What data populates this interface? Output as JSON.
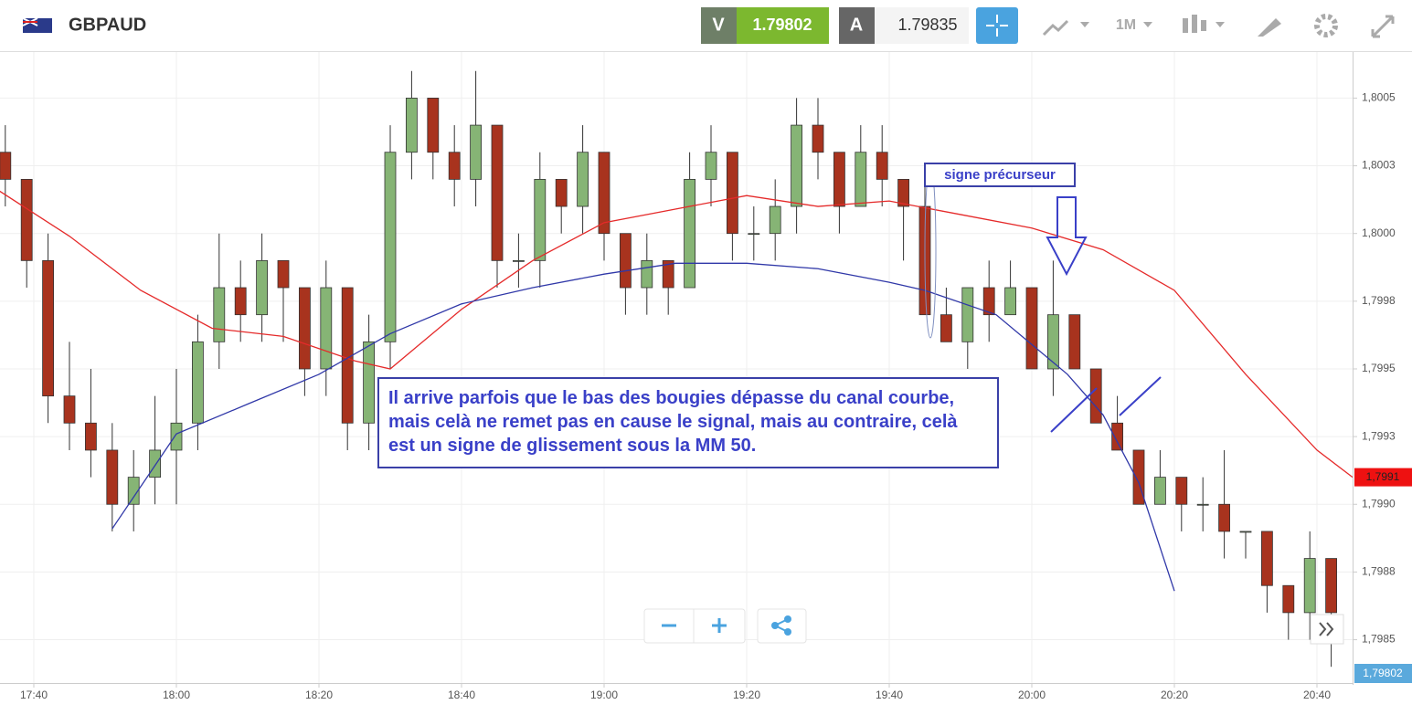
{
  "header": {
    "symbol": "GBPAUD",
    "sell_label": "V",
    "sell_price": "1.79802",
    "buy_label": "A",
    "buy_price": "1.79835",
    "timeframe": "1M"
  },
  "chart_data": {
    "type": "candlestick",
    "x": [
      "17:36",
      "17:39",
      "17:42",
      "17:45",
      "17:48",
      "17:51",
      "17:54",
      "17:57",
      "18:00",
      "18:03",
      "18:06",
      "18:09",
      "18:12",
      "18:15",
      "18:18",
      "18:21",
      "18:24",
      "18:27",
      "18:30",
      "18:33",
      "18:36",
      "18:39",
      "18:42",
      "18:45",
      "18:48",
      "18:51",
      "18:54",
      "18:57",
      "19:00",
      "19:03",
      "19:06",
      "19:09",
      "19:12",
      "19:15",
      "19:18",
      "19:21",
      "19:24",
      "19:27",
      "19:30",
      "19:33",
      "19:36",
      "19:39",
      "19:42",
      "19:45",
      "19:48",
      "19:51",
      "19:54",
      "19:57",
      "20:00",
      "20:03",
      "20:06",
      "20:09",
      "20:12",
      "20:15",
      "20:18",
      "20:21",
      "20:24",
      "20:27",
      "20:30",
      "20:33",
      "20:36",
      "20:39",
      "20:42"
    ],
    "open": [
      1.8003,
      1.8002,
      1.7999,
      1.7994,
      1.7993,
      1.7992,
      1.799,
      1.7991,
      1.7992,
      1.7993,
      1.7996,
      1.7998,
      1.7997,
      1.7999,
      1.7998,
      1.7995,
      1.7998,
      1.7993,
      1.7996,
      1.8003,
      1.8005,
      1.8003,
      1.8002,
      1.8004,
      1.7999,
      1.7999,
      1.8002,
      1.8001,
      1.8003,
      1.8,
      1.7998,
      1.7999,
      1.7998,
      1.8002,
      1.8003,
      1.8,
      1.8,
      1.8001,
      1.8004,
      1.8003,
      1.8001,
      1.8003,
      1.8002,
      1.8001,
      1.7997,
      1.7996,
      1.7998,
      1.7997,
      1.7998,
      1.7995,
      1.7997,
      1.7995,
      1.7993,
      1.7992,
      1.799,
      1.7991,
      1.799,
      1.799,
      1.7989,
      1.7989,
      1.7987,
      1.7986,
      1.7988
    ],
    "high": [
      1.8004,
      1.8002,
      1.8,
      1.7996,
      1.7995,
      1.7993,
      1.7992,
      1.7994,
      1.7995,
      1.7997,
      1.8,
      1.7999,
      1.8,
      1.7999,
      1.7998,
      1.7999,
      1.7998,
      1.7997,
      1.8004,
      1.8006,
      1.8005,
      1.8004,
      1.8006,
      1.8004,
      1.8,
      1.8003,
      1.8002,
      1.8004,
      1.8003,
      1.8,
      1.8,
      1.7999,
      1.8003,
      1.8004,
      1.8003,
      1.8001,
      1.8002,
      1.8005,
      1.8005,
      1.8003,
      1.8004,
      1.8004,
      1.8002,
      1.8002,
      1.7998,
      1.7998,
      1.7999,
      1.7999,
      1.7998,
      1.7999,
      1.7997,
      1.7995,
      1.7994,
      1.7992,
      1.7992,
      1.7991,
      1.7991,
      1.7992,
      1.7989,
      1.7989,
      1.7987,
      1.7989,
      1.7988
    ],
    "low": [
      1.8001,
      1.7998,
      1.7993,
      1.7992,
      1.7991,
      1.7989,
      1.7989,
      1.799,
      1.799,
      1.7992,
      1.7995,
      1.7996,
      1.7996,
      1.7996,
      1.7994,
      1.7994,
      1.7992,
      1.7992,
      1.7995,
      1.8002,
      1.8002,
      1.8001,
      1.8001,
      1.7998,
      1.7998,
      1.7998,
      1.8,
      1.8,
      1.7999,
      1.7997,
      1.7997,
      1.7997,
      1.7998,
      1.8001,
      1.7999,
      1.7999,
      1.7999,
      1.8,
      1.8002,
      1.8,
      1.8001,
      1.8001,
      1.7999,
      1.7997,
      1.7996,
      1.7995,
      1.7996,
      1.7997,
      1.7995,
      1.7994,
      1.7995,
      1.7993,
      1.7992,
      1.799,
      1.799,
      1.7989,
      1.7989,
      1.7988,
      1.7988,
      1.7986,
      1.7985,
      1.7985,
      1.7984
    ],
    "close": [
      1.8002,
      1.7999,
      1.7994,
      1.7993,
      1.7992,
      1.799,
      1.7991,
      1.7992,
      1.7993,
      1.7996,
      1.7998,
      1.7997,
      1.7999,
      1.7998,
      1.7995,
      1.7998,
      1.7993,
      1.7996,
      1.8003,
      1.8005,
      1.8003,
      1.8002,
      1.8004,
      1.7999,
      1.7999,
      1.8002,
      1.8001,
      1.8003,
      1.8,
      1.7998,
      1.7999,
      1.7998,
      1.8002,
      1.8003,
      1.8,
      1.8,
      1.8001,
      1.8004,
      1.8003,
      1.8001,
      1.8003,
      1.8002,
      1.8001,
      1.7997,
      1.7996,
      1.7998,
      1.7997,
      1.7998,
      1.7995,
      1.7997,
      1.7995,
      1.7993,
      1.7992,
      1.799,
      1.7991,
      1.799,
      1.799,
      1.7989,
      1.7989,
      1.7987,
      1.7986,
      1.7988,
      1.7986
    ],
    "up_color": "#86b475",
    "down_color": "#a8331e",
    "lines": [
      {
        "color": "#e52a2a",
        "x": [
          "17:35",
          "17:45",
          "17:55",
          "18:05",
          "18:15",
          "18:25",
          "18:30",
          "18:40",
          "18:50",
          "19:00",
          "19:10",
          "19:20",
          "19:30",
          "19:40",
          "19:50",
          "20:00",
          "20:10",
          "20:20",
          "20:30",
          "20:40",
          "20:45"
        ],
        "values": [
          1.80016,
          1.79999,
          1.79979,
          1.79965,
          1.79962,
          1.79953,
          1.7995,
          1.79972,
          1.7999,
          1.80004,
          1.80009,
          1.80014,
          1.8001,
          1.80012,
          1.80007,
          1.80002,
          1.79994,
          1.79979,
          1.79948,
          1.7992,
          1.7991
        ]
      },
      {
        "color": "#3038a8",
        "x": [
          "17:51",
          "18:00",
          "18:10",
          "18:20",
          "18:30",
          "18:40",
          "18:50",
          "19:00",
          "19:10",
          "19:20",
          "19:30",
          "19:40",
          "19:45",
          "19:55",
          "20:05",
          "20:10",
          "20:15",
          "20:20"
        ],
        "values": [
          1.79891,
          1.79926,
          1.79937,
          1.79948,
          1.79963,
          1.79974,
          1.7998,
          1.79985,
          1.79989,
          1.79989,
          1.79987,
          1.79982,
          1.79979,
          1.7997,
          1.79948,
          1.79933,
          1.79908,
          1.79868
        ]
      }
    ],
    "ylim": [
      1.79834,
      1.80067
    ],
    "yticks": [
      {
        "value": 1.8005,
        "label": "1,8005"
      },
      {
        "value": 1.80025,
        "label": "1,8003"
      },
      {
        "value": 1.8,
        "label": "1,8000"
      },
      {
        "value": 1.79975,
        "label": "1,7998"
      },
      {
        "value": 1.7995,
        "label": "1,7995"
      },
      {
        "value": 1.79925,
        "label": "1,7993"
      },
      {
        "value": 1.799,
        "label": "1,7990"
      },
      {
        "value": 1.79875,
        "label": "1,7988"
      },
      {
        "value": 1.7985,
        "label": "1,7985"
      }
    ],
    "xticks": [
      "17:40",
      "18:00",
      "18:20",
      "18:40",
      "19:00",
      "19:20",
      "19:40",
      "20:00",
      "20:20",
      "20:40"
    ],
    "grid": true,
    "price_tag": {
      "value": 1.7991,
      "label": "1,7991",
      "color": "#ee1111"
    },
    "last_price_label": "1,79802",
    "annotations": [
      "signe précurseur",
      "Il arrive parfois que le bas des bougies dépasse du canal courbe, mais celà ne remet pas en cause le signal, mais au contraire, celà est un signe de glissement sous la MM 50."
    ]
  }
}
